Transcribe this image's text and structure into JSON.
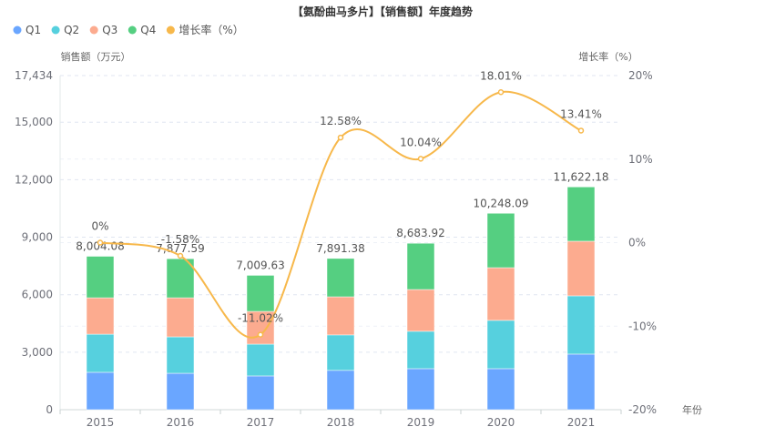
{
  "chart_data": {
    "type": "bar",
    "stacked": true,
    "title": "【氨酚曲马多片】【销售额】年度趋势",
    "xlabel": "年份",
    "ylabel": "销售额（万元）",
    "y2label": "增长率（%）",
    "categories": [
      "2015",
      "2016",
      "2017",
      "2018",
      "2019",
      "2020",
      "2021"
    ],
    "ylim": [
      0,
      17434
    ],
    "y_ticks": [
      0,
      3000,
      6000,
      9000,
      12000,
      15000,
      17434
    ],
    "y_tick_labels": [
      "0",
      "3,000",
      "6,000",
      "9,000",
      "12,000",
      "15,000",
      "17,434"
    ],
    "y2lim": [
      -20,
      20
    ],
    "y2_ticks": [
      -20,
      -10,
      0,
      10,
      20
    ],
    "y2_tick_labels": [
      "-20%",
      "-10%",
      "0%",
      "10%",
      "20%"
    ],
    "grid": true,
    "legend_position": "top-left",
    "series": [
      {
        "name": "Q1",
        "color": "#6aa6ff",
        "values": [
          1950,
          1900,
          1760,
          2050,
          2140,
          2140,
          2900
        ]
      },
      {
        "name": "Q2",
        "color": "#56d0de",
        "values": [
          1990,
          1900,
          1660,
          1850,
          1950,
          2520,
          3040
        ]
      },
      {
        "name": "Q3",
        "color": "#fcab8f",
        "values": [
          1900,
          2040,
          1710,
          1990,
          2180,
          2750,
          2850
        ]
      },
      {
        "name": "Q4",
        "color": "#55cf81",
        "values": [
          2164.08,
          2037.59,
          1879.63,
          2001.38,
          2413.92,
          2838.09,
          2832.18
        ]
      }
    ],
    "totals": [
      8004.08,
      7877.59,
      7009.63,
      7891.38,
      8683.92,
      10248.09,
      11622.18
    ],
    "total_labels": [
      "8,004.08",
      "7,877.59",
      "7,009.63",
      "7,891.38",
      "8,683.92",
      "10,248.09",
      "11,622.18"
    ],
    "line_series": {
      "name": "增长率（%）",
      "color": "#f7b84b",
      "axis": "right",
      "values": [
        0,
        -1.58,
        -11.02,
        12.58,
        10.04,
        18.01,
        13.41
      ],
      "labels": [
        "0%",
        "-1.58%",
        "-11.02%",
        "12.58%",
        "10.04%",
        "18.01%",
        "13.41%"
      ]
    }
  },
  "legend": [
    {
      "label": "Q1",
      "color": "#6aa6ff"
    },
    {
      "label": "Q2",
      "color": "#56d0de"
    },
    {
      "label": "Q3",
      "color": "#fcab8f"
    },
    {
      "label": "Q4",
      "color": "#55cf81"
    },
    {
      "label": "增长率（%）",
      "color": "#f7b84b"
    }
  ]
}
